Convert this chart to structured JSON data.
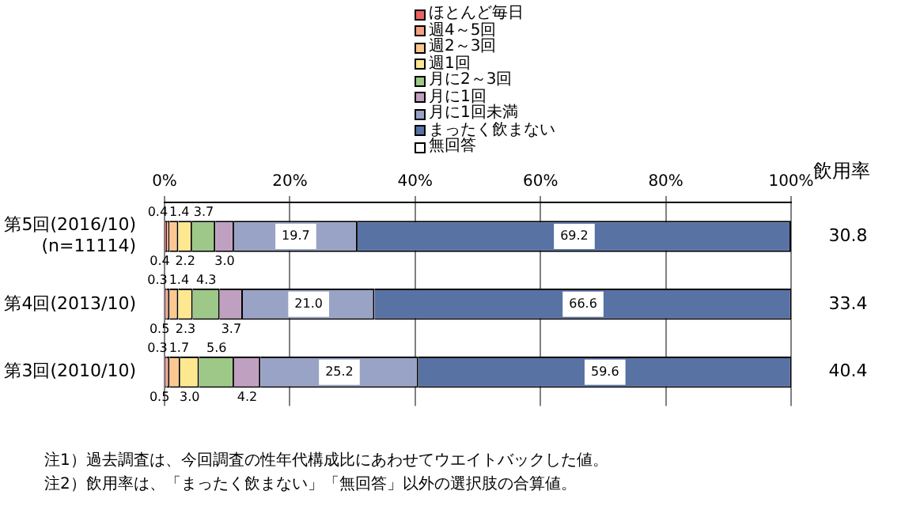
{
  "chart_data": {
    "type": "bar",
    "orientation": "horizontal",
    "stacked": true,
    "legend": "top",
    "grid": "x",
    "y2label": "飲用率",
    "categories": [
      "第5回(2016/10)\n(n=11114)",
      "第4回(2013/10)",
      "第3回(2010/10)"
    ],
    "xlim": [
      0,
      100
    ],
    "xticks": [
      {
        "value": 0,
        "label": "0%"
      },
      {
        "value": 20,
        "label": "20%"
      },
      {
        "value": 40,
        "label": "40%"
      },
      {
        "value": 60,
        "label": "60%"
      },
      {
        "value": 80,
        "label": "80%"
      },
      {
        "value": 100,
        "label": "100%"
      }
    ],
    "series": [
      {
        "name": "ほとんど毎日",
        "color": "#f06060",
        "values": [
          0.4,
          0.3,
          0.3
        ],
        "value_labels": [
          "0.4",
          "0.3",
          "0.3"
        ]
      },
      {
        "name": "週4～5回",
        "color": "#f4a080",
        "values": [
          0.4,
          0.5,
          0.5
        ],
        "value_labels": [
          "0.4",
          "0.5",
          "0.5"
        ]
      },
      {
        "name": "週2～3回",
        "color": "#fcc890",
        "values": [
          1.4,
          1.4,
          1.7
        ],
        "value_labels": [
          "1.4",
          "1.4",
          "1.7"
        ]
      },
      {
        "name": "週1回",
        "color": "#fde890",
        "values": [
          2.2,
          2.3,
          3.0
        ],
        "value_labels": [
          "2.2",
          "2.3",
          "3.0"
        ]
      },
      {
        "name": "月に2～3回",
        "color": "#9dc888",
        "values": [
          3.7,
          4.3,
          5.6
        ],
        "value_labels": [
          "3.7",
          "4.3",
          "5.6"
        ]
      },
      {
        "name": "月に1回",
        "color": "#c0a0c0",
        "values": [
          3.0,
          3.7,
          4.2
        ],
        "value_labels": [
          "3.0",
          "3.7",
          "4.2"
        ]
      },
      {
        "name": "月に1回未満",
        "color": "#99a3c6",
        "values": [
          19.7,
          21.0,
          25.2
        ],
        "value_labels": [
          "19.7",
          "21.0",
          "25.2"
        ]
      },
      {
        "name": "まったく飲まない",
        "color": "#5872a4",
        "values": [
          69.2,
          66.6,
          59.6
        ],
        "value_labels": [
          "69.2",
          "66.6",
          "59.6"
        ]
      },
      {
        "name": "無回答",
        "color": "#ffffff",
        "values": [
          0,
          0,
          0
        ],
        "value_labels": [
          null,
          null,
          null
        ]
      }
    ],
    "annotations": [
      "30.8",
      "33.4",
      "40.4",
      "注1）過去調査は、今回調査の性年代構成比にあわせてウエイトバックした値。",
      "注2）飲用率は、「まったく飲まない」「無回答」以外の選択肢の合算値。"
    ]
  }
}
